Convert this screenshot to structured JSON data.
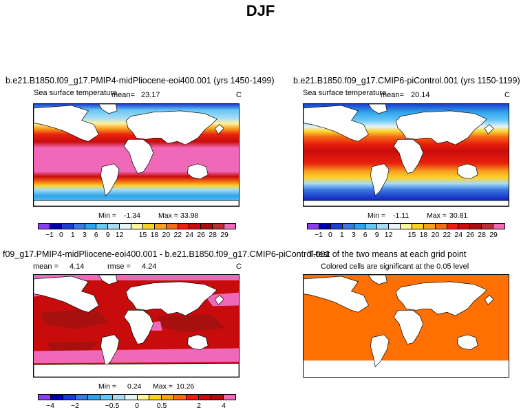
{
  "figure": {
    "title": "DJF"
  },
  "panels": {
    "p1": {
      "title": "b.e21.B1850.f09_g17.PMIP4-midPliocene-eoi400.001 (yrs 1450-1499)",
      "subtitle": "Sea surface temperature",
      "mean_label": "mean=",
      "mean": "23.17",
      "units": "C",
      "min_label": "Min =",
      "min": "-1.34",
      "max_label": "Max =",
      "max": "33.98"
    },
    "p2": {
      "title": "b.e21.B1850.f09_g17.CMIP6-piControl.001 (yrs 1150-1199)",
      "subtitle": "Sea surface temperature",
      "mean_label": "mean=",
      "mean": "20.14",
      "units": "C",
      "min_label": "Min =",
      "min": "-1.11",
      "max_label": "Max =",
      "max": "30.81"
    },
    "p3": {
      "title": "f09_g17.PMIP4-midPliocene-eoi400.001 - b.e21.B1850.f09_g17.CMIP6-piControl.001",
      "mean_label": "mean =",
      "mean": "4.14",
      "rmse_label": "rmse =",
      "rmse": "4.24",
      "units": "C",
      "min_label": "Min =",
      "min": "0.24",
      "max_label": "Max =",
      "max": "10.26"
    },
    "p4": {
      "title": "T-test of the two means at each grid point",
      "subtitle": "Colored cells are significant at the 0.05 level"
    }
  },
  "colorbars": {
    "sst": {
      "colors": [
        "#8b3ff0",
        "#0000a8",
        "#1c3ecc",
        "#3b7ae0",
        "#2fa4ec",
        "#66c8f4",
        "#a8dcf4",
        "#e6f4f8",
        "#fff4a0",
        "#fcd228",
        "#f8a020",
        "#f46c14",
        "#e8200c",
        "#c80c0c",
        "#a81010",
        "#b83030",
        "#f068b8"
      ],
      "labels": [
        "-1",
        "0",
        "1",
        "3",
        "6",
        "9",
        "12",
        "15",
        "18",
        "20",
        "22",
        "24",
        "26",
        "28",
        "29"
      ]
    },
    "diff": {
      "colors": [
        "#8b3ff0",
        "#0000a8",
        "#1c3ecc",
        "#3b7ae0",
        "#2fa4ec",
        "#66c8f4",
        "#a8dcf4",
        "#e6f4f8",
        "#fff4a0",
        "#fcd228",
        "#f8a020",
        "#f46c14",
        "#e8200c",
        "#c80c0c",
        "#a81010",
        "#f068b8"
      ],
      "labels": [
        "-4",
        "-2",
        "-0.5",
        "0",
        "0.5",
        "2",
        "4"
      ]
    }
  },
  "map_colors": {
    "land": "#ffffff",
    "ttest_fill": "#ff7000",
    "diff_base": "#c80c0c",
    "diff_hot": "#f068b8"
  }
}
